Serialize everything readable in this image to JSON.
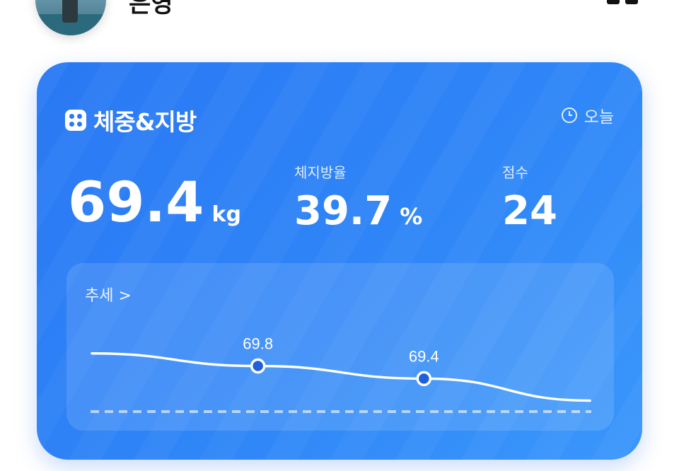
{
  "header": {
    "username": "은영",
    "avatar_icon": "avatar",
    "menu_icon": "more-icon"
  },
  "card": {
    "title": "체중&지방",
    "title_icon": "dice-icon",
    "date_filter": "오늘",
    "date_icon": "clock-icon",
    "weight": {
      "value": "69.4",
      "unit": "kg"
    },
    "body_fat": {
      "label": "체지방율",
      "value": "39.7",
      "unit": "%"
    },
    "score": {
      "label": "점수",
      "value": "24"
    },
    "trend": {
      "link_label": "추세 >"
    }
  },
  "colors": {
    "card_start": "#2a78f4",
    "card_end": "#3a97fb",
    "line": "#ffffff",
    "point_fill": "#1f5fd8"
  },
  "chart_data": {
    "type": "line",
    "x": [
      0,
      1,
      2,
      3
    ],
    "series": [
      {
        "values": [
          70.2,
          69.8,
          69.4,
          68.7
        ]
      }
    ],
    "labeled_points": [
      {
        "index": 1,
        "label": "69.8"
      },
      {
        "index": 2,
        "label": "69.4"
      }
    ],
    "ylim": [
      67.9,
      71.5
    ],
    "baseline_dashed": true
  }
}
